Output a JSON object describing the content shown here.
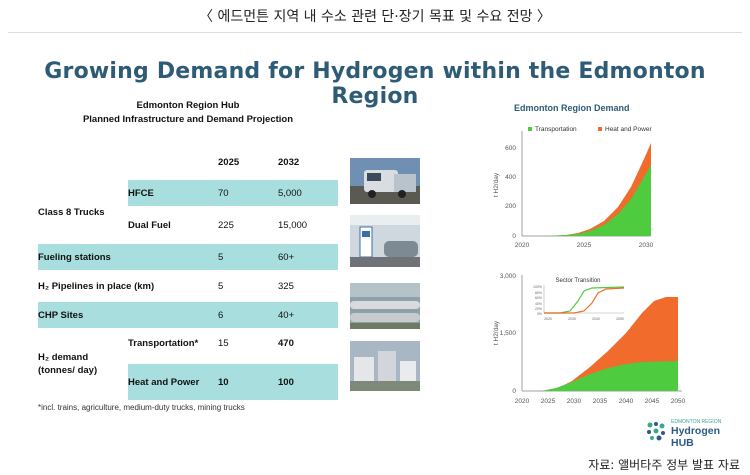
{
  "caption": "〈 에드먼튼 지역 내 수소 관련 단·장기 목표 및 수요 전망 〉",
  "slide_title": "Growing Demand for Hydrogen within the Edmonton Region",
  "hub": {
    "line1": "Edmonton Region Hub",
    "line2": "Planned Infrastructure and Demand Projection"
  },
  "table": {
    "col_2025": "2025",
    "col_2032": "2032",
    "class8": "Class 8 Trucks",
    "hfce": "HFCE",
    "hfce_2025": "70",
    "hfce_2032": "5,000",
    "dual": "Dual Fuel",
    "dual_2025": "225",
    "dual_2032": "15,000",
    "fuel": "Fueling stations",
    "fuel_2025": "5",
    "fuel_2032": "60+",
    "pipe": "H₂ Pipelines in place (km)",
    "pipe_2025": "5",
    "pipe_2032": "325",
    "chp": "CHP Sites",
    "chp_2025": "6",
    "chp_2032": "40+",
    "demand_line1": "H₂ demand",
    "demand_line2": "(tonnes/ day)",
    "transport": "Transportation*",
    "transport_2025": "15",
    "transport_2032": "470",
    "heat": "Heat and Power",
    "heat_2025": "10",
    "heat_2032": "100"
  },
  "footnote": "*incl. trains, agriculture, medium-duty trucks, mining trucks",
  "chart1": {
    "title": "Edmonton Region Demand",
    "legend_transport": "Transportation",
    "legend_heat": "Heat and Power",
    "ylabel": "t H2/day",
    "yticks": [
      "600",
      "400",
      "200",
      "0"
    ],
    "xticks": [
      "2020",
      "2025",
      "2030"
    ]
  },
  "chart2": {
    "ylabel": "t H2/day",
    "yticks": [
      "3,000",
      "1,500",
      "0"
    ],
    "xticks": [
      "2020",
      "2025",
      "2030",
      "2035",
      "2040",
      "2045",
      "2050"
    ],
    "inset_title": "Sector Transition",
    "inset_yticks": [
      "100%",
      "80%",
      "60%",
      "40%",
      "20%",
      "0%"
    ],
    "inset_xticks": [
      "2020",
      "2030",
      "2040",
      "2050"
    ]
  },
  "logo": {
    "small": "EDMONTON REGION",
    "big": "Hydrogen HUB"
  },
  "source": "자료: 앨버타주 정부 발표 자료",
  "colors": {
    "title": "#2e5b76",
    "teal_row": "#a8dede",
    "transport_green": "#4fcb3f",
    "heat_orange": "#f06b2c"
  }
}
